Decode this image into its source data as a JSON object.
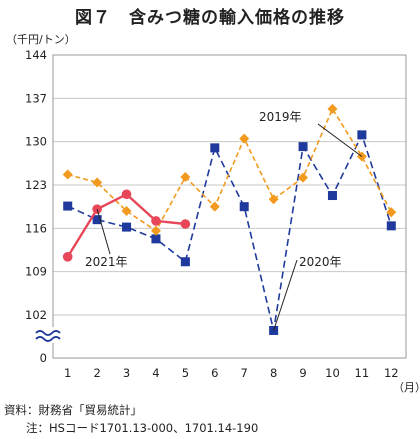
{
  "figure": {
    "title": "図７　含みつ糖の輸入価格の推移",
    "source_label": "資料：財務省「貿易統計」",
    "note_label": "注：HSコード1701.13-000、1701.14-190"
  },
  "chart_data": {
    "type": "line",
    "ylabel": "（千円/トン）",
    "xlabel": "（月）",
    "categories": [
      "1",
      "2",
      "3",
      "4",
      "5",
      "6",
      "7",
      "8",
      "9",
      "10",
      "11",
      "12"
    ],
    "yticks": [
      0,
      102,
      109,
      116,
      123,
      130,
      137,
      144
    ],
    "ylim": [
      102,
      144
    ],
    "axis_break": true,
    "grid": true,
    "series": [
      {
        "name": "2019年",
        "color": "#F29A1F",
        "style": "dashed",
        "marker": "diamond",
        "values": [
          124.7,
          123.4,
          118.8,
          115.6,
          124.3,
          119.5,
          130.5,
          120.7,
          124.2,
          135.3,
          127.6,
          118.6
        ]
      },
      {
        "name": "2020年",
        "color": "#1F3A9C",
        "style": "dashed",
        "marker": "square",
        "values": [
          119.6,
          117.4,
          116.2,
          114.3,
          110.6,
          129.0,
          119.5,
          99.5,
          129.2,
          121.3,
          131.1,
          116.4
        ]
      },
      {
        "name": "2021年",
        "color": "#E8475A",
        "style": "solid",
        "marker": "circle",
        "values": [
          111.4,
          119.1,
          121.5,
          117.2,
          116.7,
          null,
          null,
          null,
          null,
          null,
          null,
          null
        ]
      }
    ]
  }
}
